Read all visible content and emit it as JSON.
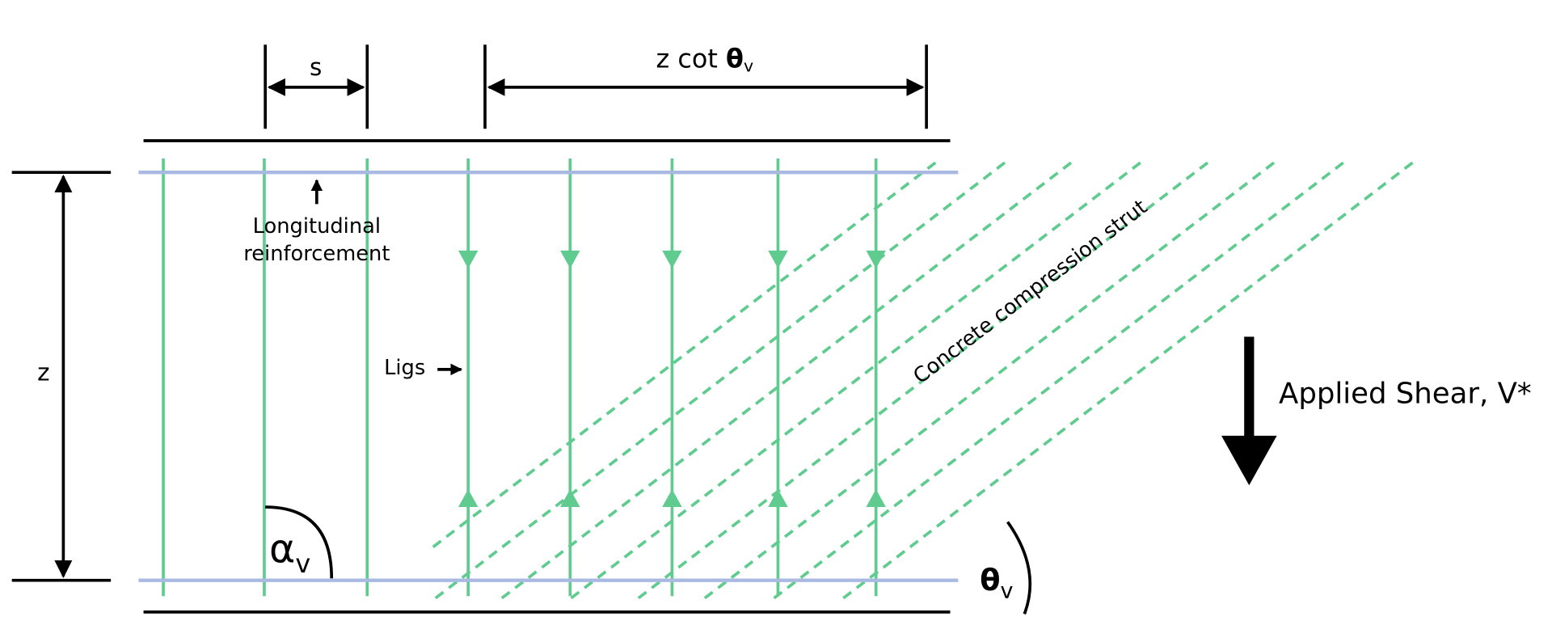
{
  "labels": {
    "spacing": "s",
    "strut_length": {
      "text": "z cot",
      "symbol": "θ",
      "subscript": "v"
    },
    "lever_arm": "z",
    "longitudinal": [
      "Longitudinal",
      "reinforcement"
    ],
    "ligs": "Ligs",
    "strut": "Concrete compression strut",
    "shear": "Applied Shear, V*",
    "alpha": {
      "symbol": "α",
      "subscript": "v"
    },
    "theta": {
      "symbol": "θ",
      "subscript": "v"
    }
  }
}
